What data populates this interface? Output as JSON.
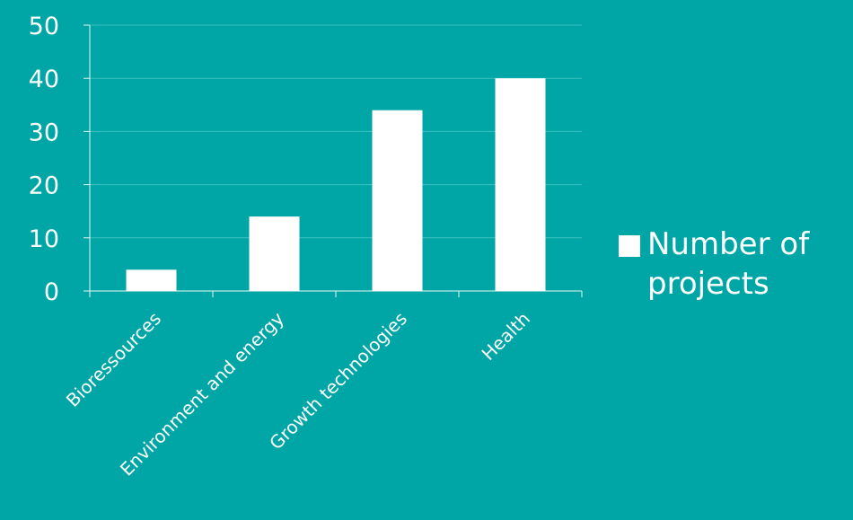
{
  "colors": {
    "background": "#00A6A6",
    "bar": "#FFFFFF",
    "text": "#FFFFFF",
    "axis": "#E6F5F5",
    "grid": "#3FC0C0"
  },
  "chart_data": {
    "type": "bar",
    "title": "",
    "xlabel": "",
    "ylabel": "",
    "categories": [
      "Bioressources",
      "Environment and energy",
      "Growth technologies",
      "Health"
    ],
    "series": [
      {
        "name": "Number of projects",
        "values": [
          4,
          14,
          34,
          40
        ]
      }
    ],
    "ylim": [
      0,
      50
    ],
    "yticks": [
      0,
      10,
      20,
      30,
      40,
      50
    ],
    "grid": true,
    "legend": {
      "position": "right",
      "label": "Number of projects"
    }
  }
}
